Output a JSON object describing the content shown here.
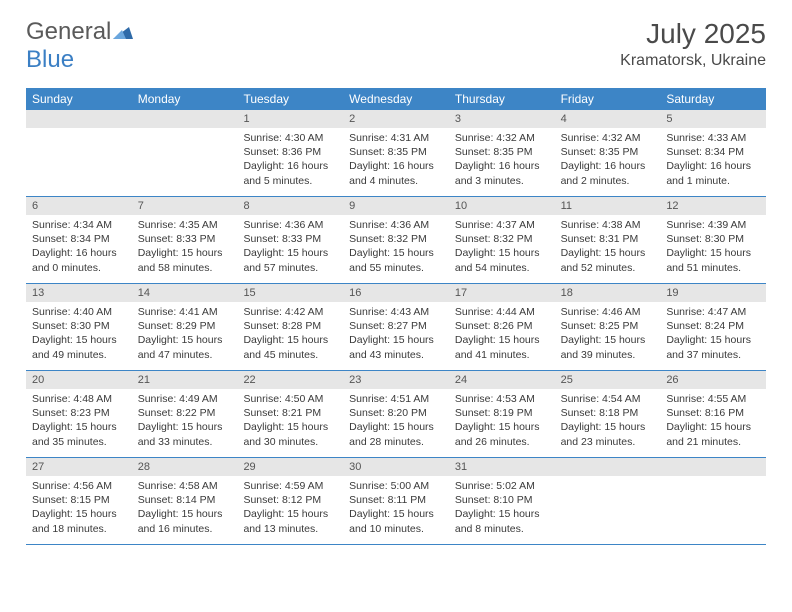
{
  "brand": {
    "name_part1": "General",
    "name_part2": "Blue"
  },
  "title": {
    "month": "July 2025",
    "location": "Kramatorsk, Ukraine"
  },
  "colors": {
    "header_bg": "#3d85c6",
    "header_text": "#ffffff",
    "daynum_bg": "#e6e6e6",
    "rule": "#3d85c6",
    "logo_gray": "#5a5a5a",
    "logo_blue": "#3b7fc4",
    "body_text": "#3a3a3a"
  },
  "day_names": [
    "Sunday",
    "Monday",
    "Tuesday",
    "Wednesday",
    "Thursday",
    "Friday",
    "Saturday"
  ],
  "weeks": [
    [
      {
        "n": "",
        "sunrise": "",
        "sunset": "",
        "daylight": ""
      },
      {
        "n": "",
        "sunrise": "",
        "sunset": "",
        "daylight": ""
      },
      {
        "n": "1",
        "sunrise": "Sunrise: 4:30 AM",
        "sunset": "Sunset: 8:36 PM",
        "daylight": "Daylight: 16 hours and 5 minutes."
      },
      {
        "n": "2",
        "sunrise": "Sunrise: 4:31 AM",
        "sunset": "Sunset: 8:35 PM",
        "daylight": "Daylight: 16 hours and 4 minutes."
      },
      {
        "n": "3",
        "sunrise": "Sunrise: 4:32 AM",
        "sunset": "Sunset: 8:35 PM",
        "daylight": "Daylight: 16 hours and 3 minutes."
      },
      {
        "n": "4",
        "sunrise": "Sunrise: 4:32 AM",
        "sunset": "Sunset: 8:35 PM",
        "daylight": "Daylight: 16 hours and 2 minutes."
      },
      {
        "n": "5",
        "sunrise": "Sunrise: 4:33 AM",
        "sunset": "Sunset: 8:34 PM",
        "daylight": "Daylight: 16 hours and 1 minute."
      }
    ],
    [
      {
        "n": "6",
        "sunrise": "Sunrise: 4:34 AM",
        "sunset": "Sunset: 8:34 PM",
        "daylight": "Daylight: 16 hours and 0 minutes."
      },
      {
        "n": "7",
        "sunrise": "Sunrise: 4:35 AM",
        "sunset": "Sunset: 8:33 PM",
        "daylight": "Daylight: 15 hours and 58 minutes."
      },
      {
        "n": "8",
        "sunrise": "Sunrise: 4:36 AM",
        "sunset": "Sunset: 8:33 PM",
        "daylight": "Daylight: 15 hours and 57 minutes."
      },
      {
        "n": "9",
        "sunrise": "Sunrise: 4:36 AM",
        "sunset": "Sunset: 8:32 PM",
        "daylight": "Daylight: 15 hours and 55 minutes."
      },
      {
        "n": "10",
        "sunrise": "Sunrise: 4:37 AM",
        "sunset": "Sunset: 8:32 PM",
        "daylight": "Daylight: 15 hours and 54 minutes."
      },
      {
        "n": "11",
        "sunrise": "Sunrise: 4:38 AM",
        "sunset": "Sunset: 8:31 PM",
        "daylight": "Daylight: 15 hours and 52 minutes."
      },
      {
        "n": "12",
        "sunrise": "Sunrise: 4:39 AM",
        "sunset": "Sunset: 8:30 PM",
        "daylight": "Daylight: 15 hours and 51 minutes."
      }
    ],
    [
      {
        "n": "13",
        "sunrise": "Sunrise: 4:40 AM",
        "sunset": "Sunset: 8:30 PM",
        "daylight": "Daylight: 15 hours and 49 minutes."
      },
      {
        "n": "14",
        "sunrise": "Sunrise: 4:41 AM",
        "sunset": "Sunset: 8:29 PM",
        "daylight": "Daylight: 15 hours and 47 minutes."
      },
      {
        "n": "15",
        "sunrise": "Sunrise: 4:42 AM",
        "sunset": "Sunset: 8:28 PM",
        "daylight": "Daylight: 15 hours and 45 minutes."
      },
      {
        "n": "16",
        "sunrise": "Sunrise: 4:43 AM",
        "sunset": "Sunset: 8:27 PM",
        "daylight": "Daylight: 15 hours and 43 minutes."
      },
      {
        "n": "17",
        "sunrise": "Sunrise: 4:44 AM",
        "sunset": "Sunset: 8:26 PM",
        "daylight": "Daylight: 15 hours and 41 minutes."
      },
      {
        "n": "18",
        "sunrise": "Sunrise: 4:46 AM",
        "sunset": "Sunset: 8:25 PM",
        "daylight": "Daylight: 15 hours and 39 minutes."
      },
      {
        "n": "19",
        "sunrise": "Sunrise: 4:47 AM",
        "sunset": "Sunset: 8:24 PM",
        "daylight": "Daylight: 15 hours and 37 minutes."
      }
    ],
    [
      {
        "n": "20",
        "sunrise": "Sunrise: 4:48 AM",
        "sunset": "Sunset: 8:23 PM",
        "daylight": "Daylight: 15 hours and 35 minutes."
      },
      {
        "n": "21",
        "sunrise": "Sunrise: 4:49 AM",
        "sunset": "Sunset: 8:22 PM",
        "daylight": "Daylight: 15 hours and 33 minutes."
      },
      {
        "n": "22",
        "sunrise": "Sunrise: 4:50 AM",
        "sunset": "Sunset: 8:21 PM",
        "daylight": "Daylight: 15 hours and 30 minutes."
      },
      {
        "n": "23",
        "sunrise": "Sunrise: 4:51 AM",
        "sunset": "Sunset: 8:20 PM",
        "daylight": "Daylight: 15 hours and 28 minutes."
      },
      {
        "n": "24",
        "sunrise": "Sunrise: 4:53 AM",
        "sunset": "Sunset: 8:19 PM",
        "daylight": "Daylight: 15 hours and 26 minutes."
      },
      {
        "n": "25",
        "sunrise": "Sunrise: 4:54 AM",
        "sunset": "Sunset: 8:18 PM",
        "daylight": "Daylight: 15 hours and 23 minutes."
      },
      {
        "n": "26",
        "sunrise": "Sunrise: 4:55 AM",
        "sunset": "Sunset: 8:16 PM",
        "daylight": "Daylight: 15 hours and 21 minutes."
      }
    ],
    [
      {
        "n": "27",
        "sunrise": "Sunrise: 4:56 AM",
        "sunset": "Sunset: 8:15 PM",
        "daylight": "Daylight: 15 hours and 18 minutes."
      },
      {
        "n": "28",
        "sunrise": "Sunrise: 4:58 AM",
        "sunset": "Sunset: 8:14 PM",
        "daylight": "Daylight: 15 hours and 16 minutes."
      },
      {
        "n": "29",
        "sunrise": "Sunrise: 4:59 AM",
        "sunset": "Sunset: 8:12 PM",
        "daylight": "Daylight: 15 hours and 13 minutes."
      },
      {
        "n": "30",
        "sunrise": "Sunrise: 5:00 AM",
        "sunset": "Sunset: 8:11 PM",
        "daylight": "Daylight: 15 hours and 10 minutes."
      },
      {
        "n": "31",
        "sunrise": "Sunrise: 5:02 AM",
        "sunset": "Sunset: 8:10 PM",
        "daylight": "Daylight: 15 hours and 8 minutes."
      },
      {
        "n": "",
        "sunrise": "",
        "sunset": "",
        "daylight": ""
      },
      {
        "n": "",
        "sunrise": "",
        "sunset": "",
        "daylight": ""
      }
    ]
  ]
}
